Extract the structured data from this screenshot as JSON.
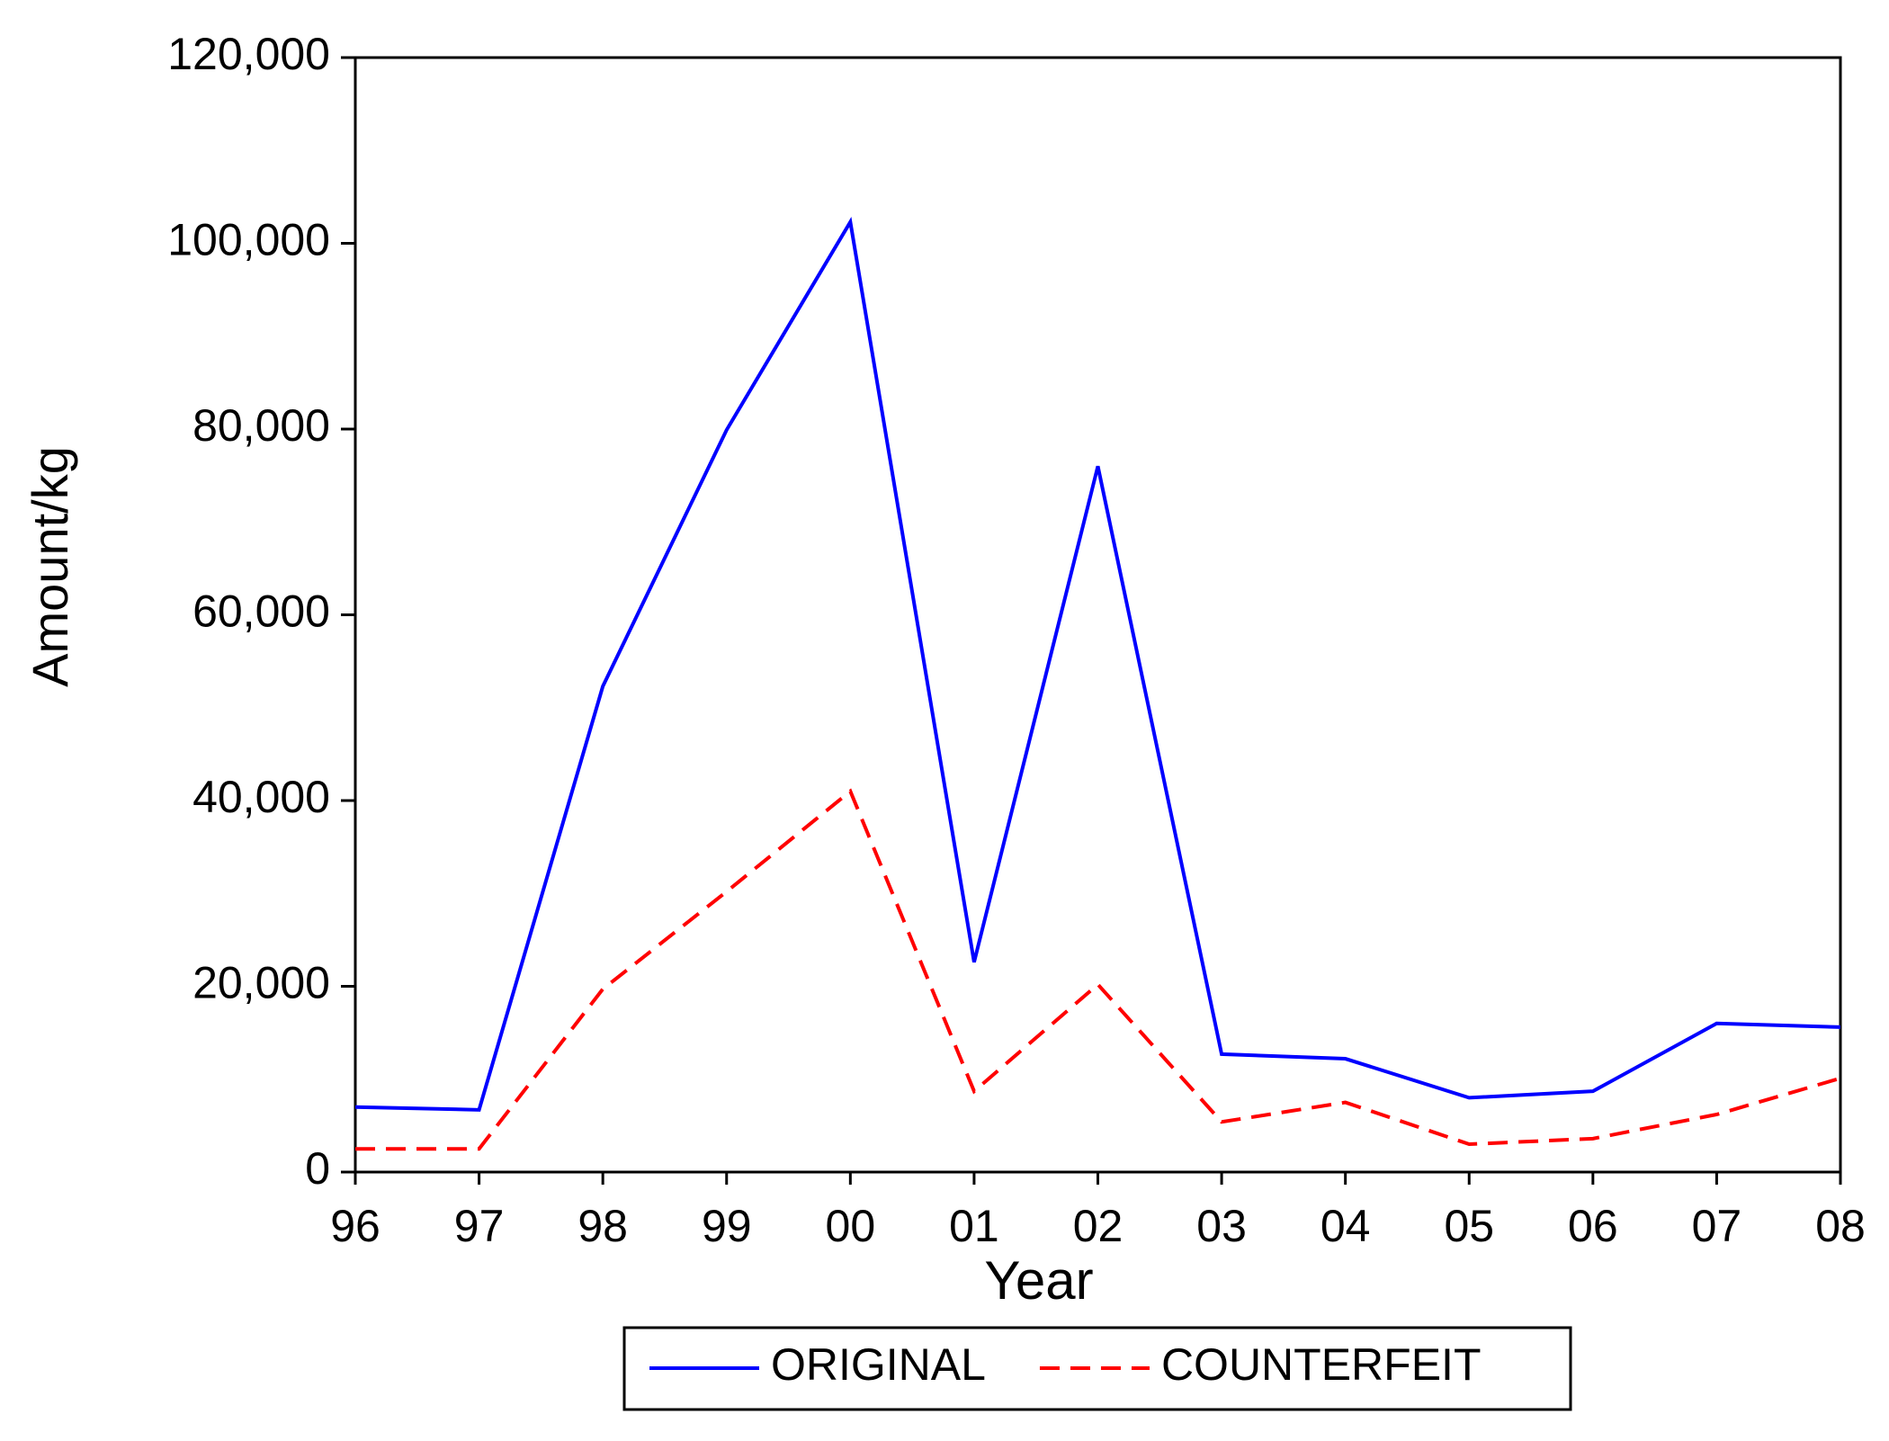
{
  "chart_data": {
    "type": "line",
    "x_label": "Year",
    "y_label": "Amount/kg",
    "categories": [
      "96",
      "97",
      "98",
      "99",
      "00",
      "01",
      "02",
      "03",
      "04",
      "05",
      "06",
      "07",
      "08"
    ],
    "series": [
      {
        "name": "ORIGINAL",
        "color": "#0000ff",
        "line_style": "solid",
        "values": [
          7000,
          6700,
          52300,
          79900,
          102300,
          22600,
          76000,
          12700,
          12200,
          8000,
          8700,
          16000,
          15600
        ]
      },
      {
        "name": "COUNTERFEIT",
        "color": "#ff0000",
        "line_style": "dashed",
        "values": [
          2500,
          2500,
          19700,
          30200,
          41000,
          8700,
          20200,
          5400,
          7500,
          3000,
          3600,
          6200,
          10100
        ]
      }
    ],
    "ylim": [
      0,
      120000
    ],
    "yticks": [
      0,
      {
        "value": 20000,
        "label": "20,000"
      },
      {
        "value": 40000,
        "label": "40,000"
      },
      {
        "value": 60000,
        "label": "60,000"
      },
      {
        "value": 80000,
        "label": "80,000"
      },
      {
        "value": 100000,
        "label": "100,000"
      },
      {
        "value": 120000,
        "label": "120,000"
      }
    ],
    "grid": false,
    "legend": "bottom"
  }
}
